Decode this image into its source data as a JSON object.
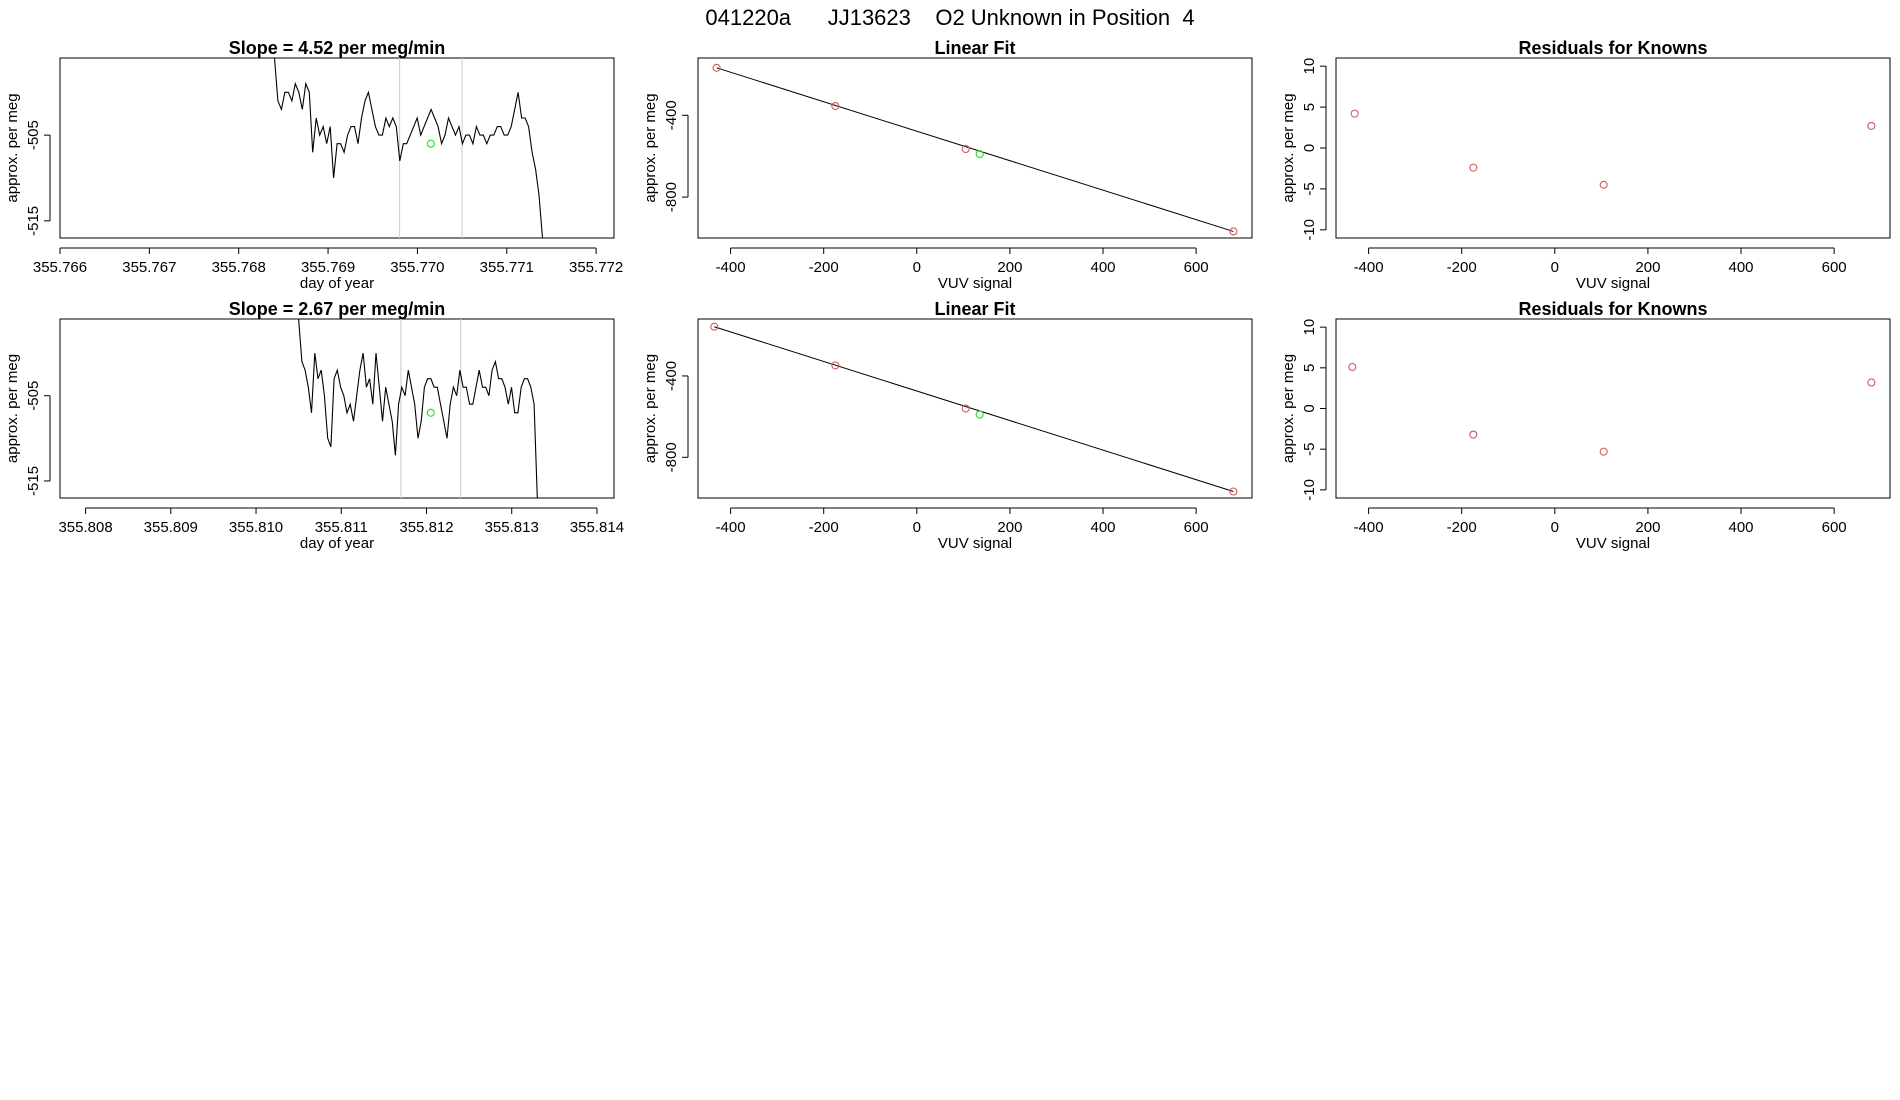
{
  "page_title": "041220a      JJ13623    O2 Unknown in Position  4",
  "colors": {
    "trace": "#000000",
    "known": "#cd5c5c",
    "unknown": "#33dd33",
    "window_line": "#d3d3d3",
    "fit_line": "#000000"
  },
  "chart_data": [
    {
      "type": "line",
      "title": "Slope =  4.52  per meg/min",
      "xlabel": "day of year",
      "ylabel": "approx. per meg",
      "xlim": [
        355.766,
        355.7722
      ],
      "ylim": [
        -517,
        -496
      ],
      "xticks": [
        "355.766",
        "355.767",
        "355.768",
        "355.769",
        "355.770",
        "355.771",
        "355.772"
      ],
      "xtick_values": [
        355.766,
        355.767,
        355.768,
        355.769,
        355.77,
        355.771,
        355.772
      ],
      "yticks": [
        "-505",
        "-515"
      ],
      "ytick_values": [
        -505,
        -515
      ],
      "window_lines": [
        355.7698,
        355.7705
      ],
      "trace_start": 355.7684,
      "trace_end": 355.7714,
      "y": [
        -496,
        -501,
        -502,
        -500,
        -500,
        -501,
        -499,
        -500,
        -502,
        -499,
        -500,
        -507,
        -503,
        -505,
        -504,
        -506,
        -504,
        -510,
        -506,
        -506,
        -507,
        -505,
        -504,
        -504,
        -506,
        -503,
        -501,
        -500,
        -502,
        -504,
        -505,
        -505,
        -503,
        -504,
        -503,
        -504,
        -508,
        -506,
        -506,
        -505,
        -504,
        -503,
        -505,
        -504,
        -503,
        -502,
        -503,
        -504,
        -506,
        -505,
        -503,
        -504,
        -505,
        -504,
        -506,
        -505,
        -505,
        -506,
        -504,
        -505,
        -505,
        -506,
        -505,
        -505,
        -504,
        -504,
        -505,
        -505,
        -504,
        -502,
        -500,
        -503,
        -503,
        -504,
        -507,
        -509,
        -512,
        -517
      ],
      "unknown_point": {
        "x": 355.77015,
        "y": -506
      }
    },
    {
      "type": "scatter",
      "title": "Linear Fit",
      "xlabel": "VUV signal",
      "ylabel": "approx. per meg",
      "xlim": [
        -470,
        720
      ],
      "ylim": [
        -1000,
        -120
      ],
      "xticks": [
        "-400",
        "-200",
        "0",
        "200",
        "400",
        "600"
      ],
      "xtick_values": [
        -400,
        -200,
        0,
        200,
        400,
        600
      ],
      "yticks": [
        "-400",
        "-800"
      ],
      "ytick_values": [
        -400,
        -800
      ],
      "fit_line": {
        "x": [
          -430,
          680
        ],
        "y": [
          -168,
          -968
        ]
      },
      "knowns": {
        "x": [
          -430,
          -175,
          105,
          680
        ],
        "y": [
          -168,
          -355,
          -565,
          -968
        ]
      },
      "unknown": {
        "x": 135,
        "y": -590
      }
    },
    {
      "type": "scatter",
      "title": "Residuals for Knowns",
      "xlabel": "VUV signal",
      "ylabel": "approx. per meg",
      "xlim": [
        -470,
        720
      ],
      "ylim": [
        -11,
        11
      ],
      "xticks": [
        "-400",
        "-200",
        "0",
        "200",
        "400",
        "600"
      ],
      "xtick_values": [
        -400,
        -200,
        0,
        200,
        400,
        600
      ],
      "yticks": [
        "10",
        "5",
        "0",
        "-5",
        "-10"
      ],
      "ytick_values": [
        10,
        5,
        0,
        -5,
        -10
      ],
      "knowns": {
        "x": [
          -430,
          -175,
          105,
          680
        ],
        "y": [
          4.2,
          -2.4,
          -4.5,
          2.7
        ]
      }
    },
    {
      "type": "line",
      "title": "Slope =  2.67  per meg/min",
      "xlabel": "day of year",
      "ylabel": "approx. per meg",
      "xlim": [
        355.8077,
        355.8142
      ],
      "ylim": [
        -517,
        -496
      ],
      "xticks": [
        "355.808",
        "355.809",
        "355.810",
        "355.811",
        "355.812",
        "355.813",
        "355.814"
      ],
      "xtick_values": [
        355.808,
        355.809,
        355.81,
        355.811,
        355.812,
        355.813,
        355.814
      ],
      "yticks": [
        "-505",
        "-515"
      ],
      "ytick_values": [
        -505,
        -515
      ],
      "window_lines": [
        355.8117,
        355.8124
      ],
      "trace_start": 355.8105,
      "trace_end": 355.8133,
      "y": [
        -496,
        -501,
        -502,
        -504,
        -507,
        -500,
        -503,
        -502,
        -505,
        -510,
        -511,
        -503,
        -502,
        -504,
        -505,
        -507,
        -506,
        -508,
        -505,
        -502,
        -500,
        -504,
        -503,
        -506,
        -500,
        -504,
        -508,
        -504,
        -506,
        -508,
        -512,
        -506,
        -504,
        -505,
        -502,
        -504,
        -506,
        -510,
        -508,
        -504,
        -503,
        -503,
        -504,
        -504,
        -506,
        -508,
        -510,
        -506,
        -504,
        -505,
        -502,
        -504,
        -504,
        -506,
        -506,
        -504,
        -502,
        -504,
        -504,
        -505,
        -502,
        -501,
        -503,
        -503,
        -504,
        -506,
        -504,
        -507,
        -507,
        -504,
        -503,
        -503,
        -504,
        -506,
        -517
      ],
      "unknown_point": {
        "x": 355.81205,
        "y": -507
      }
    },
    {
      "type": "scatter",
      "title": "Linear Fit",
      "xlabel": "VUV signal",
      "ylabel": "approx. per meg",
      "xlim": [
        -470,
        720
      ],
      "ylim": [
        -1000,
        -120
      ],
      "xticks": [
        "-400",
        "-200",
        "0",
        "200",
        "400",
        "600"
      ],
      "xtick_values": [
        -400,
        -200,
        0,
        200,
        400,
        600
      ],
      "yticks": [
        "-400",
        "-800"
      ],
      "ytick_values": [
        -400,
        -800
      ],
      "fit_line": {
        "x": [
          -435,
          680
        ],
        "y": [
          -158,
          -968
        ]
      },
      "knowns": {
        "x": [
          -435,
          -175,
          105,
          680
        ],
        "y": [
          -158,
          -348,
          -560,
          -968
        ]
      },
      "unknown": {
        "x": 135,
        "y": -590
      }
    },
    {
      "type": "scatter",
      "title": "Residuals for Knowns",
      "xlabel": "VUV signal",
      "ylabel": "approx. per meg",
      "xlim": [
        -470,
        720
      ],
      "ylim": [
        -11,
        11
      ],
      "xticks": [
        "-400",
        "-200",
        "0",
        "200",
        "400",
        "600"
      ],
      "xtick_values": [
        -400,
        -200,
        0,
        200,
        400,
        600
      ],
      "yticks": [
        "10",
        "5",
        "0",
        "-5",
        "-10"
      ],
      "ytick_values": [
        10,
        5,
        0,
        -5,
        -10
      ],
      "knowns": {
        "x": [
          -435,
          -175,
          105,
          680
        ],
        "y": [
          5.1,
          -3.2,
          -5.3,
          3.2
        ]
      }
    }
  ]
}
